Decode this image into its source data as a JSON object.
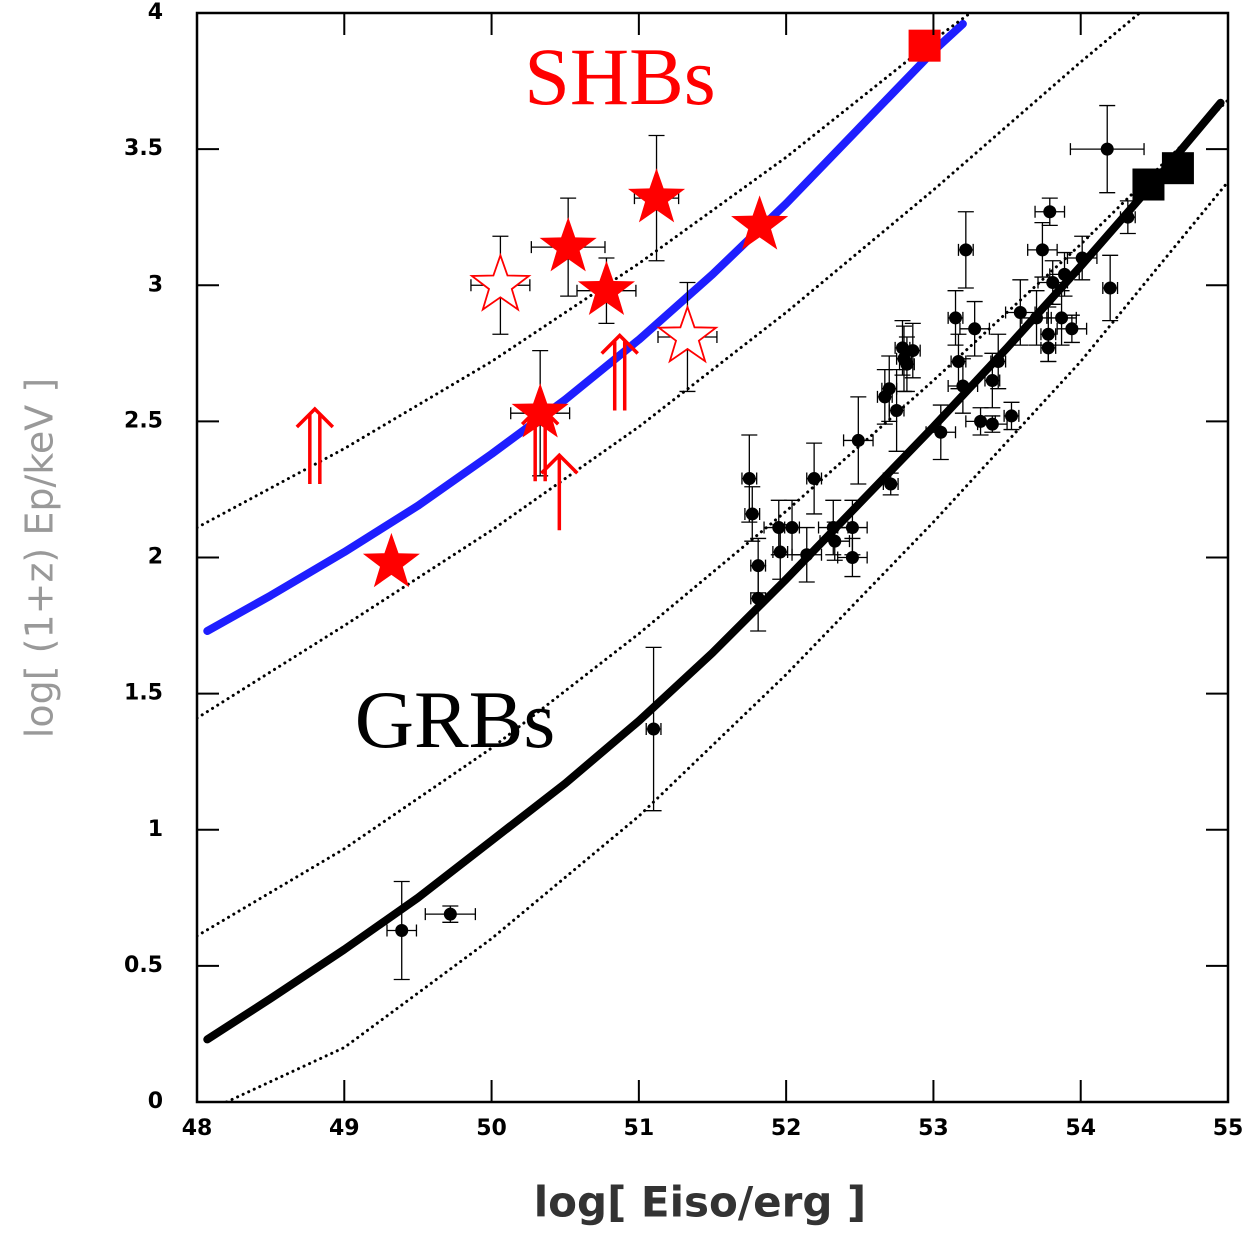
{
  "chart_data": {
    "type": "scatter",
    "x_label": "log[ Eiso/erg ]",
    "y_label": "log[ (1+z) Ep/keV ]",
    "xlim": [
      48,
      55
    ],
    "ylim": [
      0,
      4
    ],
    "xticks": [
      48,
      49,
      50,
      51,
      52,
      53,
      54,
      55
    ],
    "yticks": [
      0,
      0.5,
      1,
      1.5,
      2,
      2.5,
      3,
      3.5,
      4
    ],
    "annotations": [
      {
        "text": "SHBs",
        "color": "#ff0000"
      },
      {
        "text": "GRBs",
        "color": "#000000"
      }
    ],
    "series": [
      {
        "marker": "thick-line",
        "color": "#1e1eff",
        "x": [
          48.07,
          48.5,
          49,
          49.5,
          50,
          50.5,
          51,
          51.5,
          52,
          52.5,
          53,
          53.2
        ],
        "values": [
          1.73,
          1.86,
          2.02,
          2.19,
          2.38,
          2.58,
          2.8,
          3.04,
          3.3,
          3.58,
          3.86,
          3.96
        ]
      },
      {
        "marker": "thick-line",
        "color": "#000000",
        "x": [
          48.07,
          48.5,
          49,
          49.5,
          50,
          50.5,
          51,
          51.5,
          52,
          52.5,
          53,
          53.5,
          54,
          54.5,
          54.95
        ],
        "values": [
          0.23,
          0.38,
          0.56,
          0.75,
          0.96,
          1.17,
          1.4,
          1.65,
          1.92,
          2.2,
          2.48,
          2.77,
          3.07,
          3.38,
          3.67
        ]
      },
      {
        "marker": "dotted-line",
        "color": "#000000",
        "x": [
          48,
          49,
          50,
          51,
          52,
          53,
          53.25
        ],
        "values": [
          2.11,
          2.4,
          2.72,
          3.08,
          3.47,
          3.9,
          4
        ]
      },
      {
        "marker": "dotted-line",
        "color": "#000000",
        "x": [
          48,
          49,
          50,
          51,
          52,
          53,
          54,
          54.4
        ],
        "values": [
          1.41,
          1.75,
          2.1,
          2.48,
          2.9,
          3.35,
          3.82,
          4
        ]
      },
      {
        "marker": "dotted-line",
        "color": "#000000",
        "x": [
          48,
          49,
          50,
          51,
          52,
          53,
          54,
          55
        ],
        "values": [
          0.61,
          0.93,
          1.3,
          1.72,
          2.17,
          2.65,
          3.15,
          3.68
        ]
      },
      {
        "marker": "dotted-line",
        "color": "#000000",
        "x": [
          48.2,
          49,
          50,
          51,
          52,
          53,
          54,
          55
        ],
        "values": [
          0,
          0.2,
          0.6,
          1.05,
          1.57,
          2.13,
          2.72,
          3.38
        ]
      },
      {
        "marker": "circle",
        "color": "#000000",
        "x": [
          49.39,
          49.72,
          51.1,
          51.75,
          51.77,
          51.81,
          51.81,
          51.95,
          51.96,
          52.04,
          52.14,
          52.19,
          52.32,
          52.33,
          52.45,
          52.45,
          52.49,
          52.67,
          52.7,
          52.71,
          52.75,
          52.79,
          52.8,
          52.82,
          52.86,
          53.05,
          53.15,
          53.17,
          53.2,
          53.22,
          53.28,
          53.32,
          53.4,
          53.4,
          53.44,
          53.53,
          53.59,
          53.7,
          53.74,
          53.78,
          53.78,
          53.79,
          53.81,
          53.87,
          53.89,
          53.94,
          54.01,
          54.18,
          54.2,
          54.32
        ],
        "values": [
          0.63,
          0.69,
          1.37,
          2.29,
          2.16,
          1.97,
          1.85,
          2.11,
          2.02,
          2.11,
          2.01,
          2.29,
          2.11,
          2.06,
          2.11,
          2.0,
          2.43,
          2.59,
          2.62,
          2.27,
          2.54,
          2.77,
          2.73,
          2.71,
          2.76,
          2.46,
          2.88,
          2.72,
          2.63,
          3.13,
          2.84,
          2.5,
          2.65,
          2.49,
          2.72,
          2.52,
          2.9,
          2.88,
          3.13,
          2.82,
          2.77,
          3.27,
          3.01,
          2.88,
          3.04,
          2.84,
          3.1,
          3.5,
          2.99,
          3.25
        ],
        "yerr": [
          0.18,
          0.03,
          0.3,
          0.16,
          0.1,
          0.1,
          0.12,
          0.1,
          0.1,
          0.1,
          0.1,
          0.13,
          0.1,
          0.07,
          0.1,
          0.07,
          0.16,
          0.1,
          0.12,
          0.04,
          0.15,
          0.1,
          0.12,
          0.1,
          0.1,
          0.1,
          0.1,
          0.1,
          0.1,
          0.14,
          0.1,
          0.05,
          0.1,
          0.03,
          0.1,
          0.05,
          0.12,
          0.1,
          0.1,
          0.1,
          0.05,
          0.05,
          0.08,
          0.1,
          0.08,
          0.05,
          0.08,
          0.16,
          0.12,
          0.06
        ],
        "xerr": [
          0.1,
          0.17,
          0.05,
          0.05,
          0.05,
          0.05,
          0.05,
          0.1,
          0.05,
          0.05,
          0.1,
          0.05,
          0.1,
          0.1,
          0.1,
          0.1,
          0.1,
          0.05,
          0.05,
          0.05,
          0.05,
          0.05,
          0.05,
          0.05,
          0.05,
          0.1,
          0.05,
          0.05,
          0.1,
          0.05,
          0.1,
          0.1,
          0.05,
          0.1,
          0.05,
          0.05,
          0.1,
          0.1,
          0.1,
          0.05,
          0.05,
          0.1,
          0.1,
          0.1,
          0.1,
          0.1,
          0.1,
          0.25,
          0.05,
          0.05
        ]
      },
      {
        "marker": "square",
        "color": "#000000",
        "x": [
          54.46,
          54.66
        ],
        "values": [
          3.37,
          3.43
        ]
      },
      {
        "marker": "square",
        "color": "#ff0000",
        "x": [
          52.94
        ],
        "values": [
          3.88
        ]
      },
      {
        "marker": "star",
        "color": "#ff0000",
        "x": [
          49.32,
          50.33,
          50.52,
          50.78,
          51.12,
          51.82
        ],
        "values": [
          1.98,
          2.53,
          3.14,
          2.98,
          3.32,
          3.22
        ],
        "yerr": [
          null,
          0.23,
          0.18,
          0.12,
          0.23,
          null
        ],
        "xerr": [
          null,
          0.2,
          0.25,
          0.2,
          0.15,
          null
        ]
      },
      {
        "marker": "open-star",
        "color": "#ff0000",
        "x": [
          50.06,
          51.33
        ],
        "values": [
          3.0,
          2.81
        ],
        "yerr": [
          0.18,
          0.2
        ],
        "xerr": [
          0.2,
          0.2
        ]
      },
      {
        "marker": "lower-limit",
        "color": "#ff0000",
        "x": [
          48.8,
          50.33,
          50.46,
          50.87
        ],
        "values": [
          2.27,
          2.28,
          2.1,
          2.54
        ],
        "arrow_style": [
          "double",
          "double",
          "single",
          "double"
        ]
      }
    ]
  }
}
